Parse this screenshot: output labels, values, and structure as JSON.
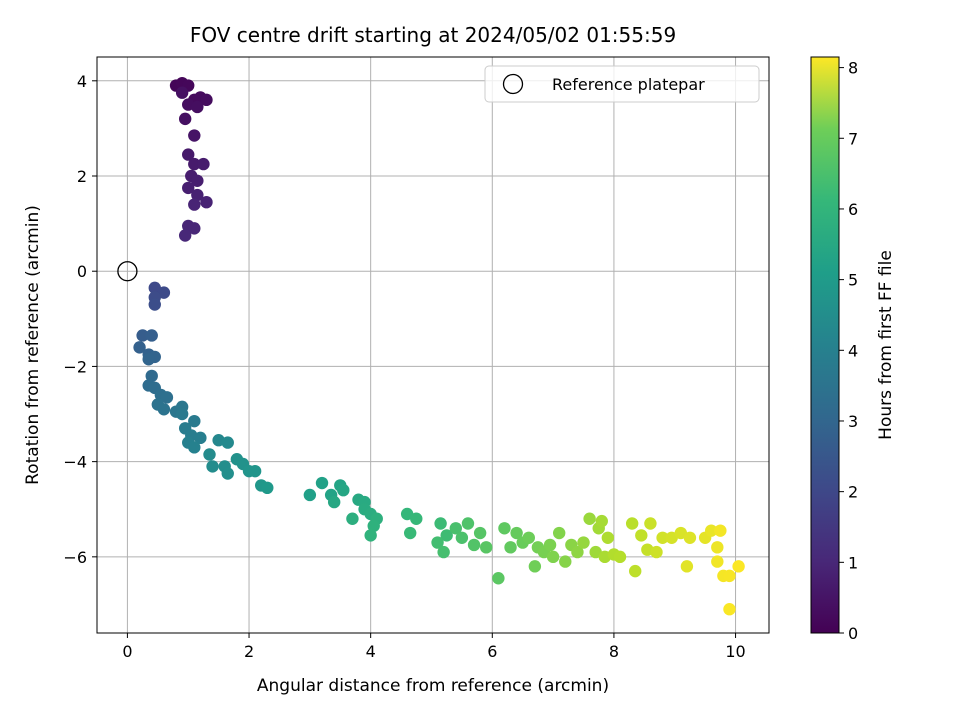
{
  "chart_data": {
    "type": "scatter",
    "title": "FOV centre drift starting at 2024/05/02 01:55:59",
    "xlabel": "Angular distance from reference (arcmin)",
    "ylabel": "Rotation from reference (arcmin)",
    "xlim": [
      -0.5,
      10.55
    ],
    "ylim": [
      -7.6,
      4.5
    ],
    "xticks": [
      0,
      2,
      4,
      6,
      8,
      10
    ],
    "yticks": [
      4,
      2,
      0,
      -2,
      -4,
      -6
    ],
    "grid": true,
    "legend": {
      "placement": "top-right",
      "entries": [
        "Reference platepar"
      ]
    },
    "reference_point": {
      "x": 0,
      "y": 0
    },
    "colorbar": {
      "label": "Hours from first FF file",
      "min": 0,
      "max": 8.15,
      "ticks": [
        0,
        1,
        2,
        3,
        4,
        5,
        6,
        7,
        8
      ],
      "colormap": "viridis"
    },
    "series": [
      {
        "points": [
          [
            0.8,
            3.9,
            0.1
          ],
          [
            0.9,
            3.95,
            0.12
          ],
          [
            1.0,
            3.9,
            0.15
          ],
          [
            1.1,
            3.6,
            0.2
          ],
          [
            1.2,
            3.65,
            0.22
          ],
          [
            1.3,
            3.6,
            0.25
          ],
          [
            1.0,
            3.5,
            0.27
          ],
          [
            1.15,
            3.45,
            0.3
          ],
          [
            0.95,
            3.2,
            0.32
          ],
          [
            0.9,
            3.75,
            0.35
          ],
          [
            1.1,
            2.85,
            0.45
          ],
          [
            1.0,
            2.45,
            0.55
          ],
          [
            1.1,
            2.25,
            0.6
          ],
          [
            1.25,
            2.25,
            0.62
          ],
          [
            1.05,
            2.0,
            0.65
          ],
          [
            1.15,
            1.9,
            0.68
          ],
          [
            1.0,
            1.75,
            0.7
          ],
          [
            1.15,
            1.6,
            0.75
          ],
          [
            1.3,
            1.45,
            0.8
          ],
          [
            1.1,
            1.4,
            0.82
          ],
          [
            1.0,
            0.95,
            0.85
          ],
          [
            1.1,
            0.9,
            0.88
          ],
          [
            0.95,
            0.75,
            0.9
          ],
          [
            0.45,
            -0.35,
            1.8
          ],
          [
            0.6,
            -0.45,
            1.85
          ],
          [
            0.45,
            -0.55,
            1.9
          ],
          [
            0.45,
            -0.7,
            1.95
          ],
          [
            0.25,
            -1.35,
            2.4
          ],
          [
            0.4,
            -1.35,
            2.45
          ],
          [
            0.2,
            -1.6,
            2.5
          ],
          [
            0.35,
            -1.75,
            2.55
          ],
          [
            0.45,
            -1.8,
            2.6
          ],
          [
            0.35,
            -1.85,
            2.62
          ],
          [
            0.4,
            -2.2,
            2.8
          ],
          [
            0.35,
            -2.4,
            2.85
          ],
          [
            0.45,
            -2.45,
            2.9
          ],
          [
            0.55,
            -2.6,
            2.95
          ],
          [
            0.65,
            -2.65,
            3.0
          ],
          [
            0.5,
            -2.8,
            3.05
          ],
          [
            0.6,
            -2.9,
            3.1
          ],
          [
            0.8,
            -2.95,
            3.2
          ],
          [
            0.9,
            -2.85,
            3.25
          ],
          [
            0.9,
            -3.0,
            3.3
          ],
          [
            1.1,
            -3.15,
            3.35
          ],
          [
            0.95,
            -3.3,
            3.4
          ],
          [
            1.05,
            -3.45,
            3.45
          ],
          [
            1.2,
            -3.5,
            3.5
          ],
          [
            1.0,
            -3.6,
            3.55
          ],
          [
            1.1,
            -3.7,
            3.6
          ],
          [
            1.5,
            -3.55,
            3.8
          ],
          [
            1.65,
            -3.6,
            3.85
          ],
          [
            1.35,
            -3.85,
            3.9
          ],
          [
            1.4,
            -4.1,
            3.95
          ],
          [
            1.6,
            -4.1,
            4.0
          ],
          [
            1.65,
            -4.25,
            4.05
          ],
          [
            1.8,
            -3.95,
            4.1
          ],
          [
            1.9,
            -4.05,
            4.15
          ],
          [
            2.0,
            -4.2,
            4.2
          ],
          [
            2.1,
            -4.2,
            4.25
          ],
          [
            2.2,
            -4.5,
            4.3
          ],
          [
            2.3,
            -4.55,
            4.35
          ],
          [
            3.0,
            -4.7,
            4.6
          ],
          [
            3.2,
            -4.45,
            4.65
          ],
          [
            3.35,
            -4.7,
            4.7
          ],
          [
            3.5,
            -4.5,
            4.75
          ],
          [
            3.55,
            -4.6,
            4.8
          ],
          [
            3.4,
            -4.85,
            4.85
          ],
          [
            3.8,
            -4.8,
            4.9
          ],
          [
            3.9,
            -4.85,
            4.95
          ],
          [
            3.9,
            -5.0,
            5.0
          ],
          [
            4.0,
            -5.1,
            5.05
          ],
          [
            3.7,
            -5.2,
            5.1
          ],
          [
            4.1,
            -5.2,
            5.15
          ],
          [
            4.05,
            -5.35,
            5.2
          ],
          [
            4.0,
            -5.55,
            5.25
          ],
          [
            4.6,
            -5.1,
            5.4
          ],
          [
            4.75,
            -5.2,
            5.45
          ],
          [
            4.65,
            -5.5,
            5.5
          ],
          [
            5.15,
            -5.3,
            5.55
          ],
          [
            5.25,
            -5.55,
            5.6
          ],
          [
            5.1,
            -5.7,
            5.65
          ],
          [
            5.2,
            -5.9,
            5.7
          ],
          [
            5.4,
            -5.4,
            5.75
          ],
          [
            5.5,
            -5.6,
            5.8
          ],
          [
            5.6,
            -5.3,
            5.85
          ],
          [
            5.7,
            -5.75,
            5.9
          ],
          [
            5.8,
            -5.5,
            5.95
          ],
          [
            5.9,
            -5.8,
            6.0
          ],
          [
            6.1,
            -6.45,
            6.05
          ],
          [
            6.2,
            -5.4,
            6.1
          ],
          [
            6.3,
            -5.8,
            6.15
          ],
          [
            6.4,
            -5.5,
            6.2
          ],
          [
            6.5,
            -5.7,
            6.25
          ],
          [
            6.6,
            -5.6,
            6.3
          ],
          [
            6.7,
            -6.2,
            6.35
          ],
          [
            6.75,
            -5.8,
            6.4
          ],
          [
            6.85,
            -5.9,
            6.45
          ],
          [
            6.95,
            -5.75,
            6.5
          ],
          [
            7.0,
            -6.0,
            6.55
          ],
          [
            7.1,
            -5.5,
            6.6
          ],
          [
            7.2,
            -6.1,
            6.65
          ],
          [
            7.3,
            -5.75,
            6.7
          ],
          [
            7.4,
            -5.9,
            6.75
          ],
          [
            7.5,
            -5.7,
            6.85
          ],
          [
            7.6,
            -5.2,
            6.9
          ],
          [
            7.7,
            -5.9,
            6.95
          ],
          [
            7.75,
            -5.4,
            7.0
          ],
          [
            7.8,
            -5.25,
            7.05
          ],
          [
            7.85,
            -6.0,
            7.1
          ],
          [
            7.9,
            -5.6,
            7.15
          ],
          [
            8.0,
            -5.95,
            7.2
          ],
          [
            8.1,
            -6.0,
            7.25
          ],
          [
            8.3,
            -5.3,
            7.3
          ],
          [
            8.35,
            -6.3,
            7.35
          ],
          [
            8.45,
            -5.55,
            7.4
          ],
          [
            8.55,
            -5.85,
            7.45
          ],
          [
            8.6,
            -5.3,
            7.5
          ],
          [
            8.7,
            -5.9,
            7.55
          ],
          [
            8.8,
            -5.6,
            7.6
          ],
          [
            8.95,
            -5.6,
            7.65
          ],
          [
            9.1,
            -5.5,
            7.7
          ],
          [
            9.25,
            -5.6,
            7.75
          ],
          [
            9.2,
            -6.2,
            7.8
          ],
          [
            9.5,
            -5.6,
            7.85
          ],
          [
            9.6,
            -5.45,
            7.9
          ],
          [
            9.7,
            -5.8,
            7.95
          ],
          [
            9.7,
            -6.1,
            8.0
          ],
          [
            9.75,
            -5.45,
            8.02
          ],
          [
            9.8,
            -6.4,
            8.05
          ],
          [
            9.9,
            -6.4,
            8.08
          ],
          [
            9.9,
            -7.1,
            8.1
          ],
          [
            10.05,
            -6.2,
            8.12
          ]
        ]
      }
    ]
  }
}
